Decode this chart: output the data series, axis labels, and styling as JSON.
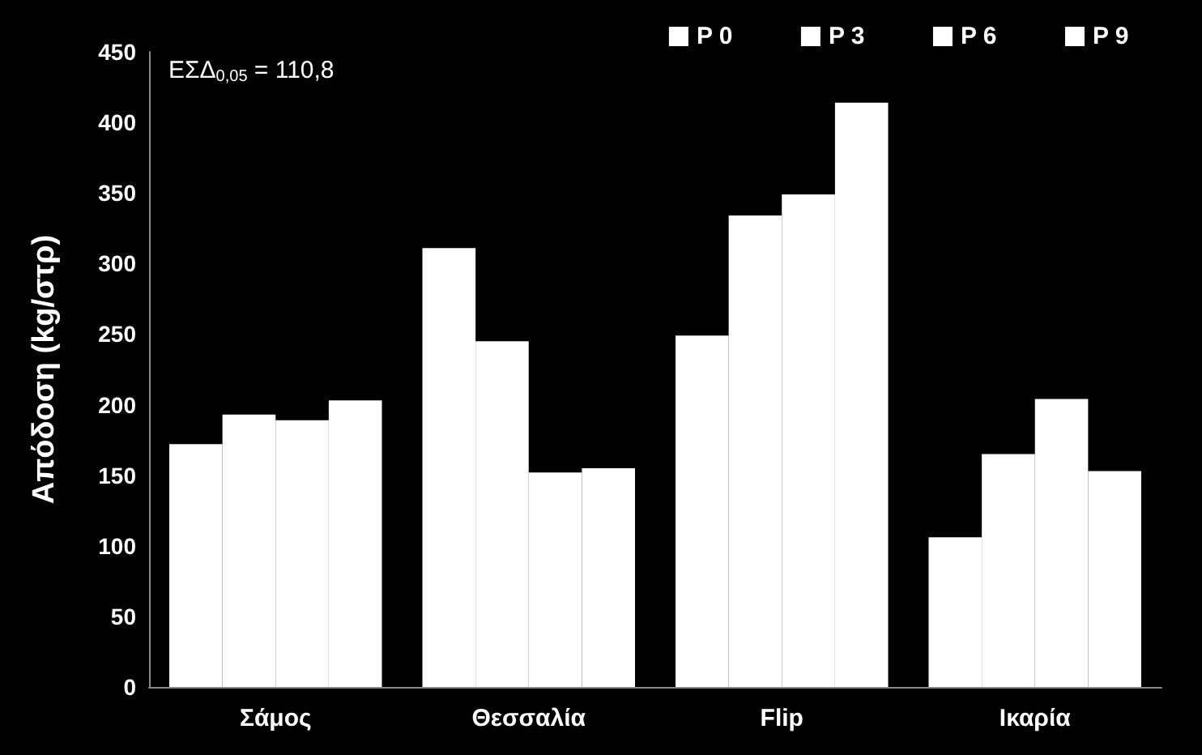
{
  "chart_data": {
    "type": "bar",
    "ylabel": "Απόδοση (kg/στρ)",
    "categories": [
      "Σάμος",
      "Θεσσαλία",
      "Flip",
      "Ικαρία"
    ],
    "series": [
      {
        "name": "P 0",
        "color": "#ffffff",
        "values": [
          172,
          311,
          249,
          106
        ]
      },
      {
        "name": "P 3",
        "color": "#ffffff",
        "values": [
          193,
          245,
          334,
          165
        ]
      },
      {
        "name": "P 6",
        "color": "#ffffff",
        "values": [
          189,
          152,
          349,
          204
        ]
      },
      {
        "name": "P 9",
        "color": "#ffffff",
        "values": [
          203,
          155,
          414,
          153
        ]
      }
    ],
    "ylim": [
      0,
      450
    ],
    "yticks": [
      0,
      50,
      100,
      150,
      200,
      250,
      300,
      350,
      400,
      450
    ],
    "annotations": [
      "ΕΣΔ$_{0,05}$ = 110,8"
    ],
    "legend": "top right",
    "grid": false
  }
}
